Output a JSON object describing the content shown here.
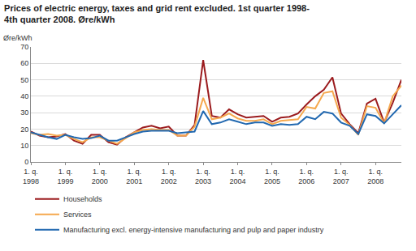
{
  "chart_data": {
    "type": "line",
    "title": "Prices of electric energy, taxes and grid rent excluded. 1st quarter 1998-\n4th quarter 2008. Øre/kWh",
    "ylabel": "Øre/kWh",
    "categories": [
      "1. q.\n1998",
      null,
      null,
      null,
      "1. q.\n1999",
      null,
      null,
      null,
      "1. q.\n2000",
      null,
      null,
      null,
      "1. q.\n2001",
      null,
      null,
      null,
      "1. q.\n2002",
      null,
      null,
      null,
      "1. q.\n2003",
      null,
      null,
      null,
      "1. q.\n2004",
      null,
      null,
      null,
      "1. q.\n2005",
      null,
      null,
      null,
      "1. q.\n2006",
      null,
      null,
      null,
      "1. q.\n2007",
      null,
      null,
      null,
      "1. q.\n2008",
      null,
      null,
      null
    ],
    "series": [
      {
        "name": "Households",
        "color": "#9b1b1e",
        "values": [
          18.5,
          16,
          15,
          15.5,
          17,
          13,
          11,
          16.5,
          16.5,
          12,
          10.5,
          15,
          18,
          21,
          22,
          20.5,
          21.5,
          16,
          16,
          22.5,
          62,
          28,
          27,
          32,
          29,
          27,
          27.5,
          28,
          24.5,
          27,
          27.5,
          29.5,
          35,
          40,
          44,
          51.5,
          29.5,
          23,
          17.5,
          35.5,
          38.5,
          24,
          36,
          50
        ]
      },
      {
        "name": "Services",
        "color": "#f5a84e",
        "values": [
          17.5,
          16.5,
          17,
          16,
          16.5,
          14,
          12,
          15,
          15,
          13,
          11,
          14.5,
          18,
          19.5,
          20,
          19.5,
          19.5,
          16,
          16,
          21.5,
          39,
          26,
          27,
          29.5,
          26.5,
          25,
          25,
          26,
          23,
          25,
          25.5,
          26,
          33.5,
          32.5,
          42,
          43,
          27,
          22.5,
          16.5,
          34,
          33,
          23.5,
          40,
          46.5
        ]
      },
      {
        "name": "Manufacturing excl. energy-intensive manufacturing and pulp and paper industry",
        "color": "#2168b0",
        "values": [
          18,
          16.5,
          15,
          14,
          16.5,
          15,
          14,
          14.5,
          16,
          13,
          13,
          15,
          17,
          18.5,
          19,
          19,
          19,
          17.5,
          18,
          18.5,
          31,
          23,
          24,
          26,
          24.5,
          23,
          24,
          24,
          22,
          23,
          22.5,
          23,
          27.5,
          26,
          30.5,
          29.5,
          24,
          22,
          17,
          29,
          28,
          23.5,
          29,
          34.5
        ]
      }
    ],
    "ylim": [
      0,
      70
    ],
    "yticks": [
      0,
      10,
      20,
      30,
      40,
      50,
      60,
      70
    ],
    "grid": true,
    "legend": "bottom"
  }
}
